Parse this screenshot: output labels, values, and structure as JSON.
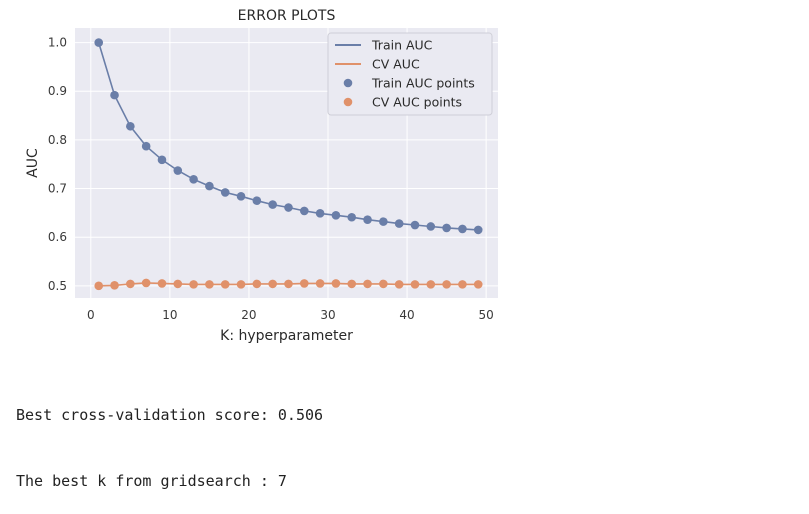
{
  "chart_data": {
    "type": "line",
    "title": "ERROR PLOTS",
    "xlabel": "K: hyperparameter",
    "ylabel": "AUC",
    "xlim": [
      -2,
      51.5
    ],
    "ylim": [
      0.475,
      1.03
    ],
    "xticks": [
      0,
      10,
      20,
      30,
      40,
      50
    ],
    "yticks": [
      0.5,
      0.6,
      0.7,
      0.8,
      0.9,
      1.0
    ],
    "ytick_labels": [
      "0.5",
      "0.6",
      "0.7",
      "0.8",
      "0.9",
      "1.0"
    ],
    "grid": true,
    "background": "#eaeaf2",
    "legend_position": "top-right",
    "x": [
      1,
      3,
      5,
      7,
      9,
      11,
      13,
      15,
      17,
      19,
      21,
      23,
      25,
      27,
      29,
      31,
      33,
      35,
      37,
      39,
      41,
      43,
      45,
      47,
      49
    ],
    "series": [
      {
        "name": "Train AUC",
        "points_name": "Train AUC points",
        "color": "#6a7ea8",
        "values": [
          1.0,
          0.892,
          0.828,
          0.787,
          0.759,
          0.737,
          0.719,
          0.705,
          0.692,
          0.684,
          0.675,
          0.667,
          0.661,
          0.654,
          0.649,
          0.645,
          0.641,
          0.636,
          0.632,
          0.628,
          0.625,
          0.622,
          0.619,
          0.617,
          0.615
        ]
      },
      {
        "name": "CV AUC",
        "points_name": "CV AUC points",
        "color": "#e0916a",
        "values": [
          0.5,
          0.501,
          0.504,
          0.506,
          0.505,
          0.504,
          0.503,
          0.503,
          0.503,
          0.503,
          0.504,
          0.504,
          0.504,
          0.505,
          0.505,
          0.505,
          0.504,
          0.504,
          0.504,
          0.503,
          0.503,
          0.503,
          0.503,
          0.503,
          0.503
        ]
      }
    ]
  },
  "output": {
    "line1": "Best cross-validation score: 0.506",
    "line2": "The best k from gridsearch : 7"
  }
}
